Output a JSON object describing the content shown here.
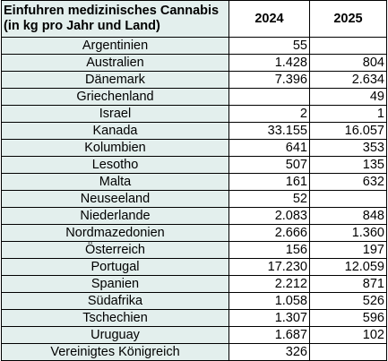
{
  "table": {
    "title_line1": "Einfuhren medizinisches Cannabis",
    "title_line2": "(in kg pro Jahr und Land)",
    "year1": "2024",
    "year2": "2025",
    "rows": [
      {
        "country": "Argentinien",
        "v2024": "55",
        "v2025": ""
      },
      {
        "country": "Australien",
        "v2024": "1.428",
        "v2025": "804"
      },
      {
        "country": "Dänemark",
        "v2024": "7.396",
        "v2025": "2.634"
      },
      {
        "country": "Griechenland",
        "v2024": "",
        "v2025": "49"
      },
      {
        "country": "Israel",
        "v2024": "2",
        "v2025": "1"
      },
      {
        "country": "Kanada",
        "v2024": "33.155",
        "v2025": "16.057"
      },
      {
        "country": "Kolumbien",
        "v2024": "641",
        "v2025": "353"
      },
      {
        "country": "Lesotho",
        "v2024": "507",
        "v2025": "135"
      },
      {
        "country": "Malta",
        "v2024": "161",
        "v2025": "632"
      },
      {
        "country": "Neuseeland",
        "v2024": "52",
        "v2025": ""
      },
      {
        "country": "Niederlande",
        "v2024": "2.083",
        "v2025": "848"
      },
      {
        "country": "Nordmazedonien",
        "v2024": "2.666",
        "v2025": "1.360"
      },
      {
        "country": "Österreich",
        "v2024": "156",
        "v2025": "197"
      },
      {
        "country": "Portugal",
        "v2024": "17.230",
        "v2025": "12.059"
      },
      {
        "country": "Spanien",
        "v2024": "2.212",
        "v2025": "871"
      },
      {
        "country": "Südafrika",
        "v2024": "1.058",
        "v2025": "526"
      },
      {
        "country": "Tschechien",
        "v2024": "1.307",
        "v2025": "596"
      },
      {
        "country": "Uruguay",
        "v2024": "1.687",
        "v2025": "102"
      },
      {
        "country": "Vereinigtes Königreich",
        "v2024": "326",
        "v2025": ""
      }
    ]
  }
}
